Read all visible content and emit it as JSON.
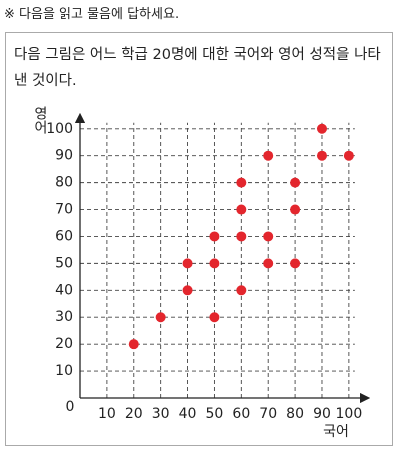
{
  "header": "※ 다음을 읽고 물음에 답하세요.",
  "intro": "다음 그림은 어느 학급 20명에 대한 국어와 영어 성적을 나타낸 것이다.",
  "chart_data": {
    "type": "scatter",
    "x_label": "국어",
    "y_label": "영어",
    "x": [
      20,
      30,
      40,
      40,
      50,
      50,
      50,
      60,
      60,
      60,
      60,
      70,
      70,
      70,
      80,
      80,
      80,
      90,
      90,
      100
    ],
    "values": [
      20,
      30,
      40,
      50,
      30,
      50,
      60,
      40,
      60,
      70,
      80,
      50,
      60,
      90,
      50,
      70,
      80,
      90,
      100,
      90
    ],
    "color": "#e3262d",
    "xlim": [
      0,
      106
    ],
    "ylim": [
      0,
      104
    ],
    "xticks": [
      0,
      10,
      20,
      30,
      40,
      50,
      60,
      70,
      80,
      90,
      100
    ],
    "yticks": [
      10,
      20,
      30,
      40,
      50,
      60,
      70,
      80,
      90,
      100
    ],
    "grid": true
  }
}
